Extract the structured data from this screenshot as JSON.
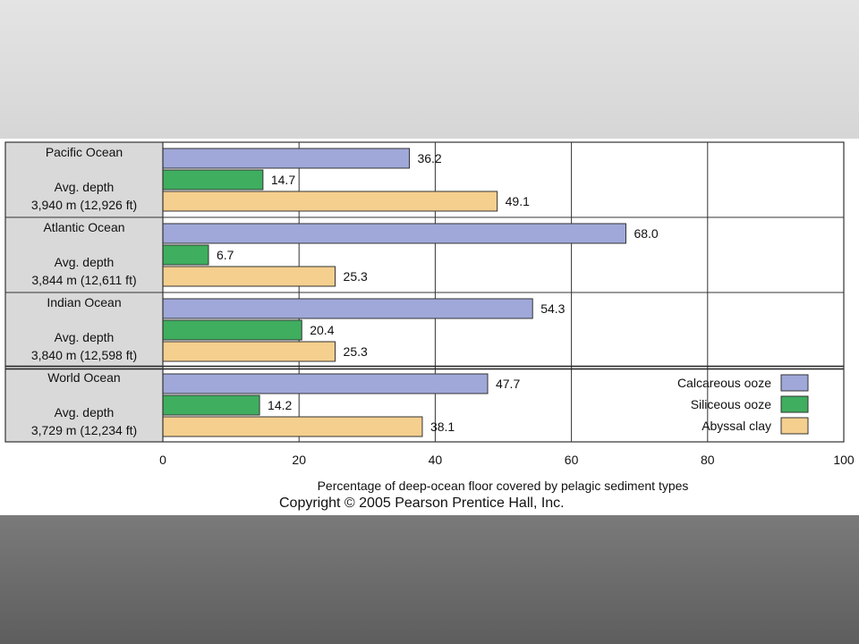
{
  "chart_data": {
    "type": "bar",
    "orientation": "horizontal",
    "categories": [
      {
        "name": "Pacific Ocean",
        "line1": "Avg. depth",
        "line2": "3,940 m (12,926 ft)"
      },
      {
        "name": "Atlantic Ocean",
        "line1": "Avg. depth",
        "line2": "3,844 m (12,611 ft)"
      },
      {
        "name": "Indian Ocean",
        "line1": "Avg. depth",
        "line2": "3,840 m (12,598 ft)"
      },
      {
        "name": "World Ocean",
        "line1": "Avg. depth",
        "line2": "3,729 m (12,234 ft)"
      }
    ],
    "series": [
      {
        "name": "Calcareous ooze",
        "color": "#9fa8d8",
        "values": [
          36.2,
          68.0,
          54.3,
          47.7
        ],
        "labels": [
          "36.2",
          "68.0",
          "54.3",
          "47.7"
        ]
      },
      {
        "name": "Siliceous ooze",
        "color": "#3fae5f",
        "values": [
          14.7,
          6.7,
          20.4,
          14.2
        ],
        "labels": [
          "14.7",
          "6.7",
          "20.4",
          "14.2"
        ]
      },
      {
        "name": "Abyssal clay",
        "color": "#f5cf8e",
        "values": [
          49.1,
          25.3,
          25.3,
          38.1
        ],
        "labels": [
          "49.1",
          "25.3",
          "25.3",
          "38.1"
        ]
      }
    ],
    "xlim": [
      0,
      100
    ],
    "xticks": [
      0,
      20,
      40,
      60,
      80,
      100
    ],
    "xlabel": "Percentage of deep-ocean floor covered by pelagic sediment types",
    "legend_position": "bottom-right",
    "grid": true
  },
  "footer": {
    "copyright": "Copyright © 2005 Pearson Prentice Hall, Inc."
  }
}
